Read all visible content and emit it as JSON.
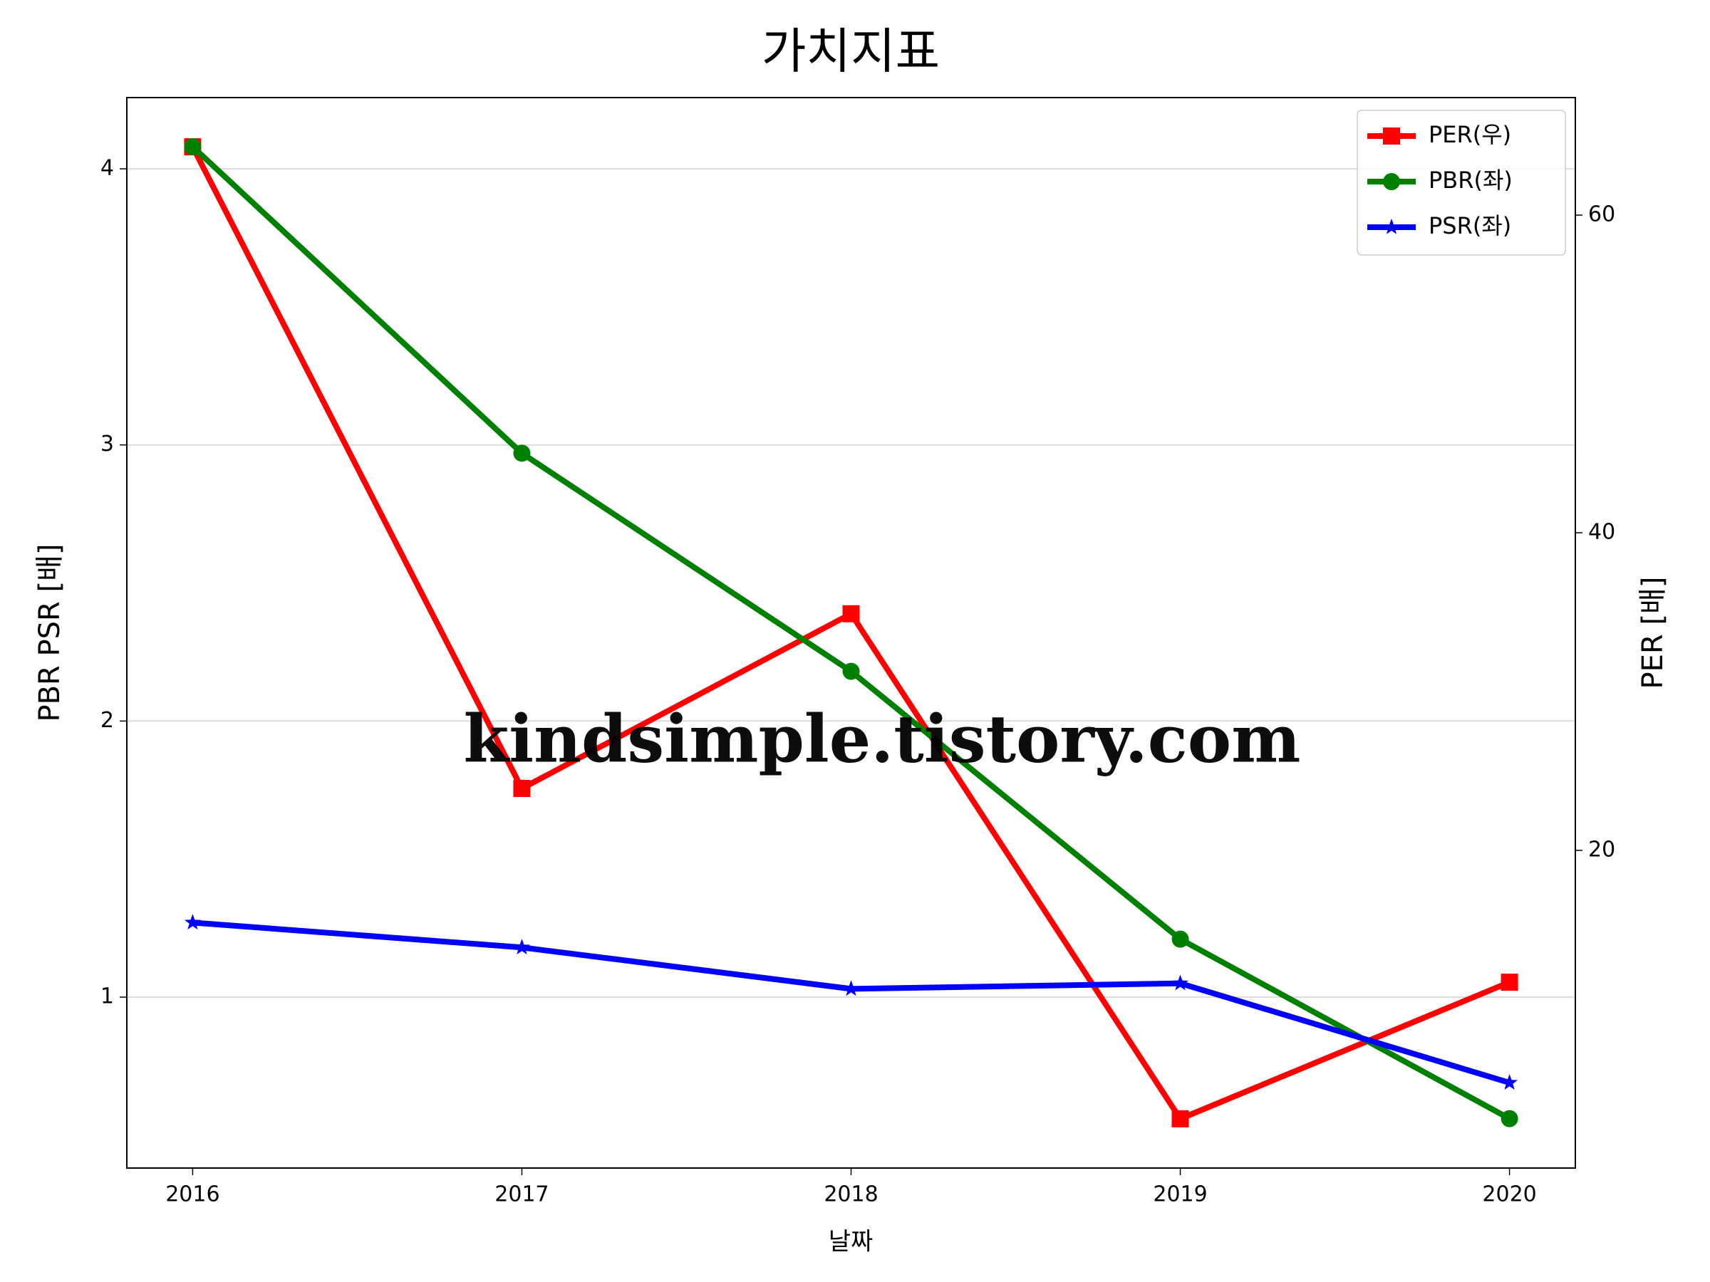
{
  "chart_data": {
    "type": "line",
    "title": "가치지표",
    "xlabel": "날짜",
    "ylabel": "PBR PSR [배]",
    "ylabel_color": "#008000",
    "y2label": "PER [배]",
    "y2label_color": "#ff0000",
    "x": [
      2016,
      2017,
      2018,
      2019,
      2020
    ],
    "xlim": [
      2015.8,
      2020.2
    ],
    "xticks": [
      2016,
      2017,
      2018,
      2019,
      2020
    ],
    "ylim": [
      0.381,
      4.258
    ],
    "yticks": [
      1,
      2,
      3,
      4
    ],
    "y2lim": [
      0,
      67.4
    ],
    "y2ticks": [
      20,
      40,
      60
    ],
    "grid": true,
    "legend": "upper right",
    "watermark": "kindsimple.tistory.com",
    "series": [
      {
        "name": "PER(우)",
        "color": "#ff0000",
        "marker": "square",
        "axis": "y2",
        "values": [
          64.3,
          23.9,
          34.9,
          3.1,
          11.7
        ]
      },
      {
        "name": "PBR(좌)",
        "color": "#008000",
        "marker": "circle",
        "values": [
          4.08,
          2.97,
          2.18,
          1.21,
          0.56
        ]
      },
      {
        "name": "PSR(좌)",
        "color": "#0000ff",
        "marker": "star",
        "values": [
          1.27,
          1.18,
          1.03,
          1.05,
          0.69
        ]
      }
    ]
  }
}
